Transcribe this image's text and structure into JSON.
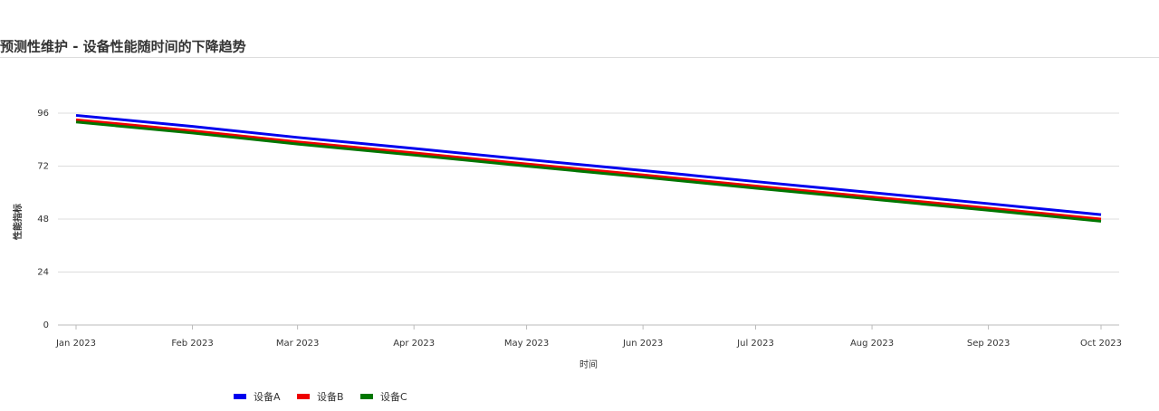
{
  "chart_data": {
    "type": "line",
    "title": "预测性维护 - 设备性能随时间的下降趋势",
    "x_label": "时间",
    "y_label": "性能指标",
    "x": [
      "2023-01",
      "2023-02",
      "2023-03",
      "2023-04",
      "2023-05",
      "2023-06",
      "2023-07",
      "2023-08",
      "2023-09",
      "2023-10"
    ],
    "series": [
      {
        "name": "设备A",
        "color": "#0000ee",
        "values": [
          95,
          90,
          85,
          80,
          75,
          70,
          65,
          60,
          55,
          50
        ]
      },
      {
        "name": "设备B",
        "color": "#ee0000",
        "values": [
          93,
          88,
          83,
          78,
          73,
          68,
          63,
          58,
          53,
          48
        ]
      },
      {
        "name": "设备C",
        "color": "#007700",
        "values": [
          92,
          87,
          82,
          77,
          72,
          67,
          62,
          57,
          52,
          47
        ]
      }
    ],
    "xlim": [
      "2023-01",
      "2023-10"
    ],
    "xticks": [
      {
        "value": "2023-01",
        "label": "Jan 2023"
      },
      {
        "value": "2023-02",
        "label": "Feb 2023"
      },
      {
        "value": "2023-03",
        "label": "Mar 2023"
      },
      {
        "value": "2023-04",
        "label": "Apr 2023"
      },
      {
        "value": "2023-05",
        "label": "May 2023"
      },
      {
        "value": "2023-06",
        "label": "Jun 2023"
      },
      {
        "value": "2023-07",
        "label": "Jul 2023"
      },
      {
        "value": "2023-08",
        "label": "Aug 2023"
      },
      {
        "value": "2023-09",
        "label": "Sep 2023"
      },
      {
        "value": "2023-10",
        "label": "Oct 2023"
      }
    ],
    "ylim": [
      0,
      96
    ],
    "yticks": [
      0,
      24,
      48,
      72,
      96
    ],
    "grid": true,
    "legend": "bottom"
  }
}
